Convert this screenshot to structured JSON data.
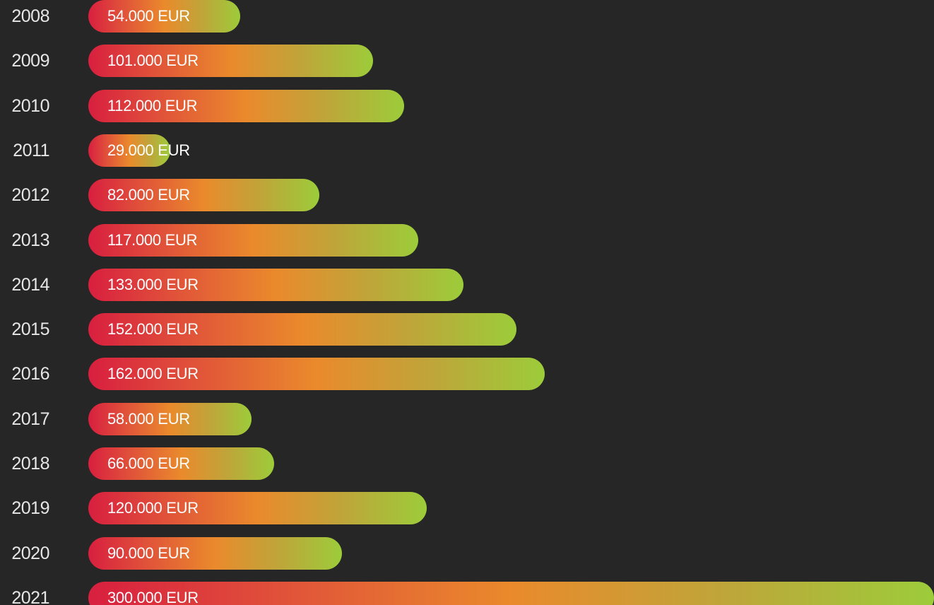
{
  "chart_data": {
    "type": "bar",
    "orientation": "horizontal",
    "categories": [
      "2008",
      "2009",
      "2010",
      "2011",
      "2012",
      "2013",
      "2014",
      "2015",
      "2016",
      "2017",
      "2018",
      "2019",
      "2020",
      "2021"
    ],
    "values": [
      54000,
      101000,
      112000,
      29000,
      82000,
      117000,
      133000,
      152000,
      162000,
      58000,
      66000,
      120000,
      90000,
      300000
    ],
    "data_labels": [
      "54.000 EUR",
      "101.000 EUR",
      "112.000 EUR",
      "29.000 EUR",
      "82.000 EUR",
      "117.000 EUR",
      "133.000 EUR",
      "152.000 EUR",
      "162.000 EUR",
      "58.000 EUR",
      "66.000 EUR",
      "120.000 EUR",
      "90.000 EUR",
      "300.000 EUR"
    ],
    "xlim": [
      0,
      300000
    ],
    "grid": false,
    "legend": "none"
  },
  "colors": {
    "background": "#262626",
    "bar_gradient_start": "#d81f3f",
    "bar_gradient_mid": "#ea8a2c",
    "bar_gradient_end": "#9ccc3a",
    "year_text": "#e6e6e6",
    "label_text": "#ffffff"
  }
}
